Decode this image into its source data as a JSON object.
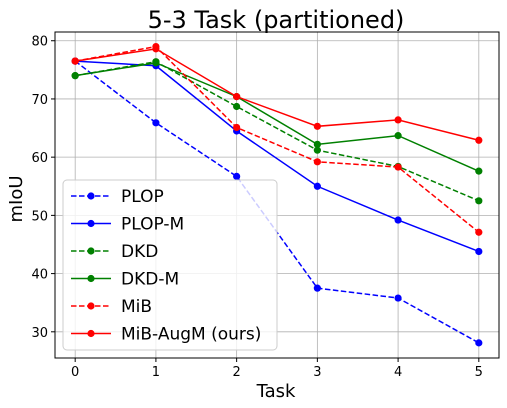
{
  "chart_data": {
    "type": "line",
    "title": "5-3 Task (partitioned)",
    "xlabel": "Task",
    "ylabel": "mIoU",
    "x": [
      0,
      1,
      2,
      3,
      4,
      5
    ],
    "xlim": [
      -0.25,
      5.25
    ],
    "ylim": [
      25.5,
      81.5
    ],
    "xticks": [
      0,
      1,
      2,
      3,
      4,
      5
    ],
    "yticks": [
      30,
      40,
      50,
      60,
      70,
      80
    ],
    "grid": true,
    "legend_position": "lower-left",
    "series": [
      {
        "name": "PLOP",
        "color": "#0000ff",
        "dash": true,
        "values": [
          76.5,
          65.9,
          56.7,
          37.5,
          35.8,
          28.1
        ]
      },
      {
        "name": "PLOP-M",
        "color": "#0000ff",
        "dash": false,
        "values": [
          76.5,
          75.7,
          64.5,
          55.0,
          49.2,
          43.8
        ]
      },
      {
        "name": "DKD",
        "color": "#008000",
        "dash": true,
        "values": [
          74.0,
          76.4,
          68.7,
          61.2,
          58.4,
          52.5
        ]
      },
      {
        "name": "DKD-M",
        "color": "#008000",
        "dash": false,
        "values": [
          74.0,
          76.2,
          70.4,
          62.2,
          63.7,
          57.6
        ]
      },
      {
        "name": "MiB",
        "color": "#ff0000",
        "dash": true,
        "values": [
          76.5,
          79.0,
          65.1,
          59.2,
          58.3,
          47.1
        ]
      },
      {
        "name": "MiB-AugM (ours)",
        "color": "#ff0000",
        "dash": false,
        "values": [
          76.5,
          78.6,
          70.4,
          65.3,
          66.4,
          62.9
        ]
      }
    ]
  }
}
